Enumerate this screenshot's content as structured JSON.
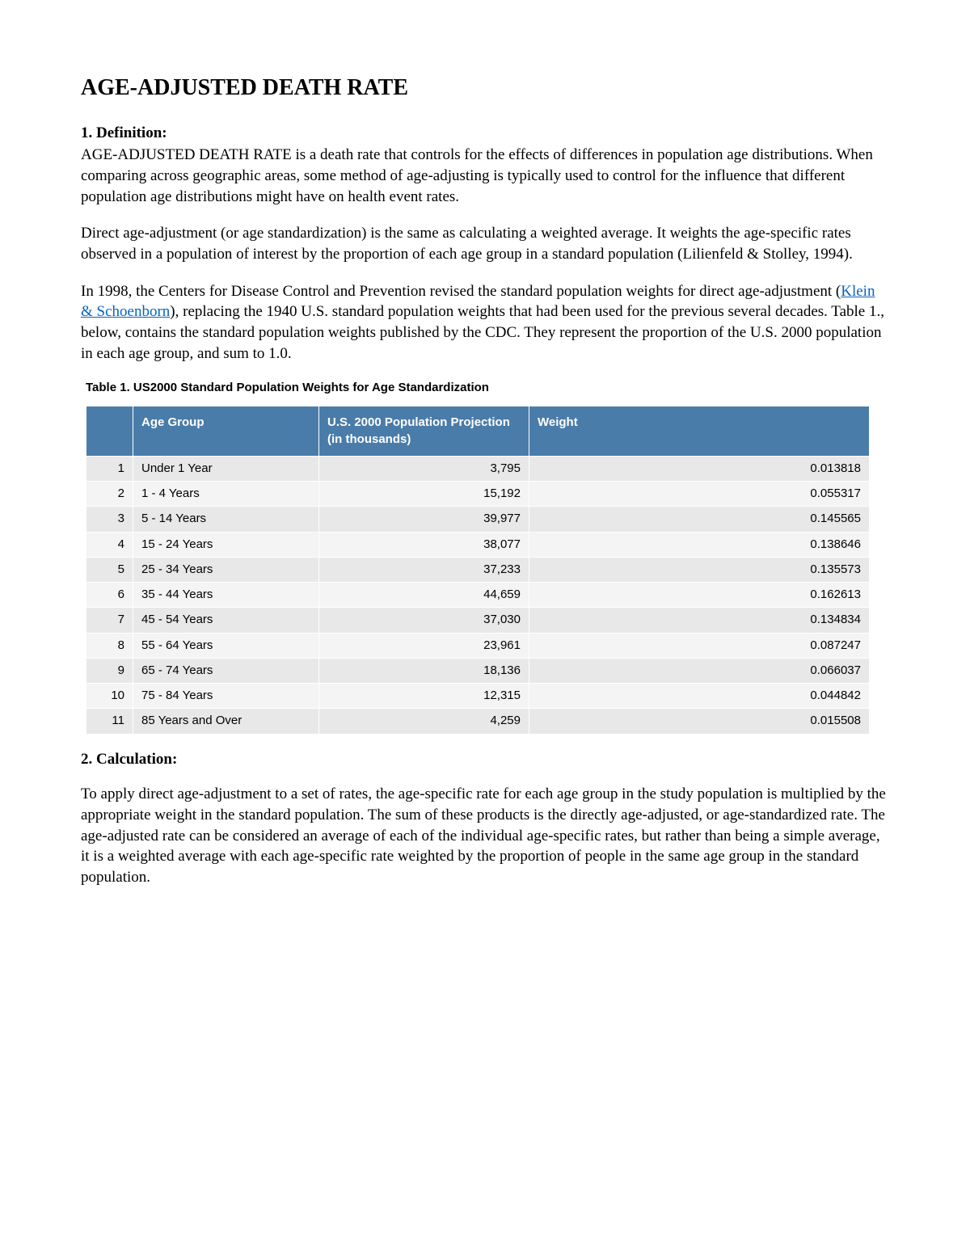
{
  "title": "AGE-ADJUSTED DEATH RATE",
  "sections": {
    "definition": {
      "heading": "1. Definition:",
      "para1": "AGE-ADJUSTED DEATH RATE is a death rate that controls for the effects of differences in population age distributions. When comparing across geographic areas, some method of age-adjusting is typically used to control for the influence that different population age distributions might have on health event rates.",
      "para2": "Direct age-adjustment (or age standardization) is the same as calculating a weighted average. It weights the age-specific rates observed in a population of interest by the proportion of each age group in a standard population (Lilienfeld & Stolley, 1994).",
      "para3_pre": "In 1998, the Centers for Disease Control and Prevention revised the standard population weights for direct age-adjustment (",
      "para3_link": "Klein & Schoenborn",
      "para3_post": "), replacing the 1940 U.S. standard population weights that had been used for the previous several decades. Table 1., below, contains the standard population weights published by the CDC. They represent the proportion of the U.S. 2000 population in each age group, and sum to 1.0."
    },
    "calculation": {
      "heading": "2. Calculation:",
      "para1": "To apply direct age-adjustment to a set of rates, the age-specific rate for each age group in the study population is multiplied by the appropriate weight in the standard population. The sum of these products is the directly age-adjusted, or age-standardized rate. The age-adjusted rate can be considered an average of each of the individual age-specific rates, but rather than being a simple average, it is a weighted average with each age-specific rate weighted by the proportion of people in the same age group in the standard population."
    }
  },
  "table": {
    "title": "Table 1. US2000 Standard Population Weights for Age Standardization",
    "columns": [
      "",
      "Age Group",
      "U.S. 2000 Population Projection\n(in thousands)",
      "Weight"
    ],
    "rows": [
      [
        "1",
        "Under 1 Year",
        "3,795",
        "0.013818"
      ],
      [
        "2",
        "1 - 4 Years",
        "15,192",
        "0.055317"
      ],
      [
        "3",
        "5 - 14 Years",
        "39,977",
        "0.145565"
      ],
      [
        "4",
        "15 - 24 Years",
        "38,077",
        "0.138646"
      ],
      [
        "5",
        "25 - 34 Years",
        "37,233",
        "0.135573"
      ],
      [
        "6",
        "35 - 44 Years",
        "44,659",
        "0.162613"
      ],
      [
        "7",
        "45 - 54 Years",
        "37,030",
        "0.134834"
      ],
      [
        "8",
        "55 - 64 Years",
        "23,961",
        "0.087247"
      ],
      [
        "9",
        "65 - 74 Years",
        "18,136",
        "0.066037"
      ],
      [
        "10",
        "75 - 84 Years",
        "12,315",
        "0.044842"
      ],
      [
        "11",
        "85 Years and Over",
        "4,259",
        "0.015508"
      ]
    ],
    "header_bg": "#4a7ca9",
    "header_text_color": "#ffffff",
    "row_odd_bg": "#e8e8e8",
    "row_even_bg": "#f4f4f4",
    "font_family": "Verdana",
    "font_size_pt": 11
  }
}
